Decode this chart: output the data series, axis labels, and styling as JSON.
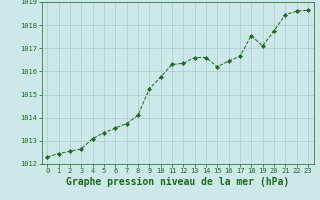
{
  "x": [
    0,
    1,
    2,
    3,
    4,
    5,
    6,
    7,
    8,
    9,
    10,
    11,
    12,
    13,
    14,
    15,
    16,
    17,
    18,
    19,
    20,
    21,
    22,
    23
  ],
  "y": [
    1012.3,
    1012.45,
    1012.55,
    1012.65,
    1013.1,
    1013.35,
    1013.55,
    1013.75,
    1014.1,
    1015.25,
    1015.75,
    1016.3,
    1016.35,
    1016.6,
    1016.6,
    1016.2,
    1016.45,
    1016.65,
    1017.55,
    1017.1,
    1017.75,
    1018.45,
    1018.6,
    1018.65
  ],
  "line_color": "#1a6b1a",
  "marker": "D",
  "marker_size": 2.0,
  "bg_color": "#cce8e8",
  "grid_color": "#aacccc",
  "xlabel": "Graphe pression niveau de la mer (hPa)",
  "ylabel": "",
  "ylim": [
    1012,
    1019
  ],
  "xlim": [
    -0.5,
    23.5
  ],
  "yticks": [
    1012,
    1013,
    1014,
    1015,
    1016,
    1017,
    1018,
    1019
  ],
  "xticks": [
    0,
    1,
    2,
    3,
    4,
    5,
    6,
    7,
    8,
    9,
    10,
    11,
    12,
    13,
    14,
    15,
    16,
    17,
    18,
    19,
    20,
    21,
    22,
    23
  ],
  "tick_color": "#1a6b1a",
  "tick_labelsize": 5.0,
  "xlabel_fontsize": 7.0,
  "xlabel_color": "#1a6b1a"
}
